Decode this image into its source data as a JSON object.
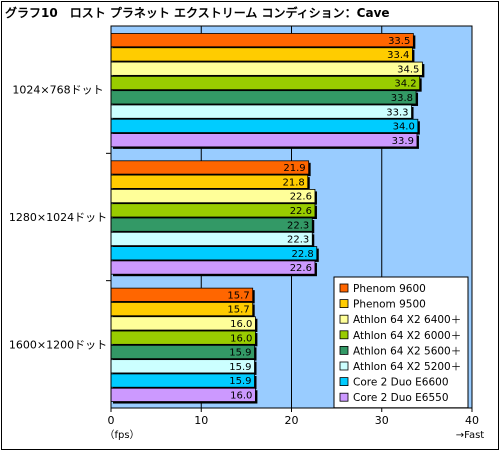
{
  "chart_data": {
    "type": "bar",
    "orientation": "horizontal",
    "title": "グラフ10　ロスト プラネット エクストリーム コンディション：Cave",
    "categories": [
      "1024×768ドット",
      "1280×1024ドット",
      "1600×1200ドット"
    ],
    "series": [
      {
        "name": "Phenom 9600",
        "color": "#ff6600",
        "values": [
          33.5,
          21.9,
          15.7
        ]
      },
      {
        "name": "Phenom 9500",
        "color": "#ffcc00",
        "values": [
          33.4,
          21.8,
          15.7
        ]
      },
      {
        "name": "Athlon 64 X2 6400＋",
        "color": "#ffff99",
        "values": [
          34.5,
          22.6,
          16.0
        ]
      },
      {
        "name": "Athlon 64 X2 6000＋",
        "color": "#99cc00",
        "values": [
          34.2,
          22.6,
          16.0
        ]
      },
      {
        "name": "Athlon 64 X2 5600＋",
        "color": "#339966",
        "values": [
          33.8,
          22.3,
          15.9
        ]
      },
      {
        "name": "Athlon 64 X2 5200＋",
        "color": "#ccffff",
        "values": [
          33.3,
          22.3,
          15.9
        ]
      },
      {
        "name": "Core 2 Duo E6600",
        "color": "#00ccff",
        "values": [
          34.0,
          22.8,
          15.9
        ]
      },
      {
        "name": "Core 2 Duo E6550",
        "color": "#cc99ff",
        "values": [
          33.9,
          22.6,
          16.0
        ]
      }
    ],
    "value_labels": [
      [
        "33.5",
        "33.4",
        "34.5",
        "34.2",
        "33.8",
        "33.3",
        "34.0",
        "33.9"
      ],
      [
        "21.9",
        "21.8",
        "22.6",
        "22.6",
        "22.3",
        "22.3",
        "22.8",
        "22.6"
      ],
      [
        "15.7",
        "15.7",
        "16.0",
        "16.0",
        "15.9",
        "15.9",
        "15.9",
        "16.0"
      ]
    ],
    "xlim": [
      0,
      40
    ],
    "xticks": [
      "0",
      "10",
      "20",
      "30",
      "40"
    ],
    "xlabel_left": "（fps）",
    "xlabel_right": "→Fast",
    "grid": true,
    "legend_position": "bottom-right",
    "plot_background": "#99ccff"
  }
}
